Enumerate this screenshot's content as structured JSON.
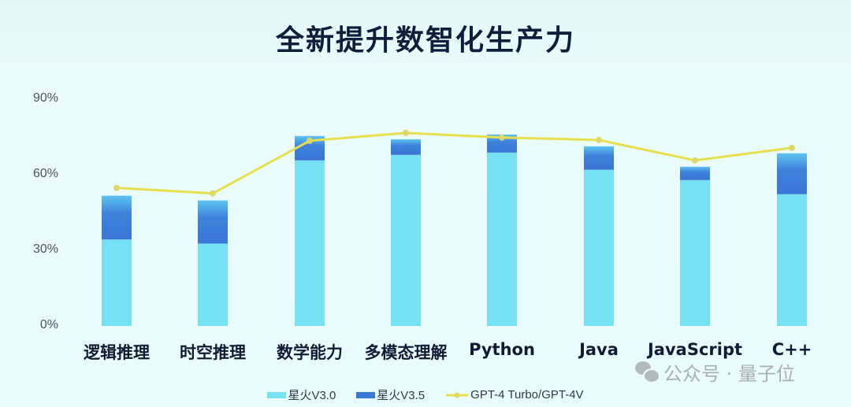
{
  "title": "全新提升数智化生产力",
  "y_axis": {
    "ticks": [
      "0%",
      "30%",
      "60%",
      "90%"
    ]
  },
  "x_axis": {
    "labels": [
      "逻辑推理",
      "时空推理",
      "数学能力",
      "多模态理解",
      "Python",
      "Java",
      "JavaScript",
      "C++"
    ]
  },
  "legend": {
    "items": [
      {
        "label": "星火V3.0",
        "color": "#76e1f2"
      },
      {
        "label": "星火V3.5",
        "color": "#3a78d8"
      },
      {
        "label": "GPT-4 Turbo/GPT-4V",
        "color": "#e6e04e"
      }
    ]
  },
  "watermark": {
    "text": "公众号 · 量子位",
    "icon": "wechat-icon"
  },
  "colors": {
    "v30": "#76e1f2",
    "v35": "#3a78d8",
    "v35_top": "#5ab8ec",
    "gpt": "#e6e04e",
    "gpt_marker": "#dcd86a"
  },
  "chart_data": {
    "type": "bar",
    "subtype": "stacked bar + line",
    "title": "全新提升数智化生产力",
    "xlabel": "",
    "ylabel": "",
    "ylim": [
      0,
      90
    ],
    "yticks": [
      0,
      30,
      60,
      90
    ],
    "ytick_format": "percent",
    "grid": false,
    "legend_position": "bottom",
    "categories": [
      "逻辑推理",
      "时空推理",
      "数学能力",
      "多模态理解",
      "Python",
      "Java",
      "JavaScript",
      "C++"
    ],
    "series": [
      {
        "name": "星火V3.0",
        "type": "bar",
        "stack": "spark",
        "values": [
          34.3,
          32.7,
          65.7,
          67.9,
          68.8,
          62.0,
          57.9,
          52.3
        ]
      },
      {
        "name": "星火V3.5",
        "type": "bar",
        "stack": "spark",
        "note": "total height of stacked bar",
        "values": [
          51.7,
          49.8,
          75.4,
          74.1,
          76.0,
          71.3,
          63.2,
          68.5
        ]
      },
      {
        "name": "GPT-4 Turbo/GPT-4V",
        "type": "line",
        "values": [
          54.8,
          52.6,
          73.5,
          76.6,
          74.8,
          73.8,
          65.7,
          70.7
        ]
      }
    ]
  }
}
